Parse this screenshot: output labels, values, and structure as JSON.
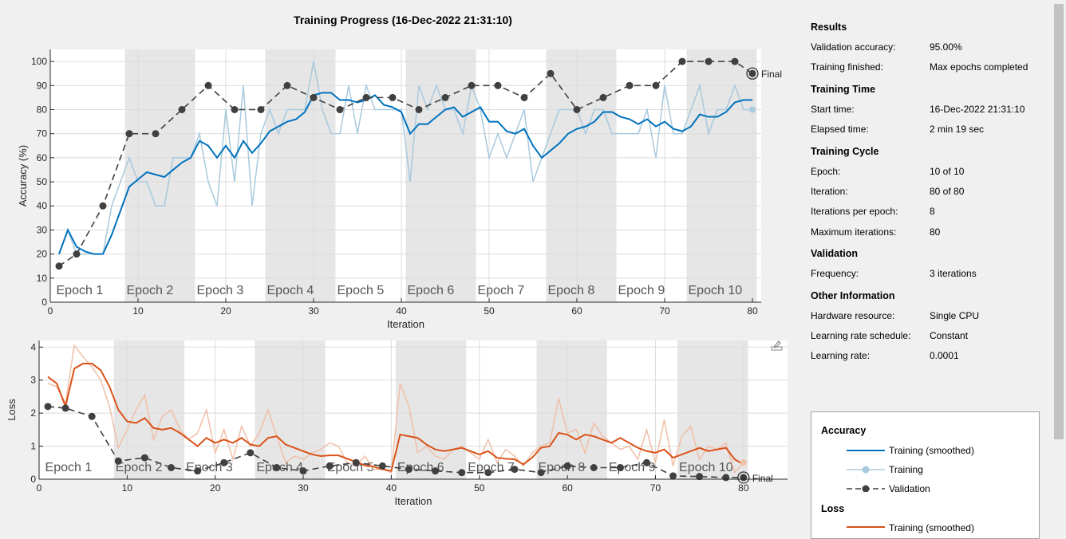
{
  "title": "Training Progress (16-Dec-2022 21:31:10)",
  "results": {
    "heading": "Results",
    "rows": [
      {
        "label": "Validation accuracy:",
        "value": "95.00%"
      },
      {
        "label": "Training finished:",
        "value": "Max epochs completed"
      }
    ]
  },
  "training_time": {
    "heading": "Training Time",
    "rows": [
      {
        "label": "Start time:",
        "value": "16-Dec-2022 21:31:10"
      },
      {
        "label": "Elapsed time:",
        "value": "2 min 19 sec"
      }
    ]
  },
  "training_cycle": {
    "heading": "Training Cycle",
    "rows": [
      {
        "label": "Epoch:",
        "value": "10 of 10"
      },
      {
        "label": "Iteration:",
        "value": "80 of 80"
      },
      {
        "label": "Iterations per epoch:",
        "value": "8"
      },
      {
        "label": "Maximum iterations:",
        "value": "80"
      }
    ]
  },
  "validation": {
    "heading": "Validation",
    "rows": [
      {
        "label": "Frequency:",
        "value": "3 iterations"
      }
    ]
  },
  "other": {
    "heading": "Other Information",
    "rows": [
      {
        "label": "Hardware resource:",
        "value": "Single CPU"
      },
      {
        "label": "Learning rate schedule:",
        "value": "Constant"
      },
      {
        "label": "Learning rate:",
        "value": "0.0001"
      }
    ]
  },
  "legend": {
    "accuracy_heading": "Accuracy",
    "acc_smoothed": "Training (smoothed)",
    "acc_training": "Training",
    "acc_validation": "Validation",
    "loss_heading": "Loss",
    "loss_smoothed": "Training (smoothed)"
  },
  "colors": {
    "acc_smoothed": "#0072bd",
    "acc_raw": "#a8c9de",
    "loss_smoothed": "#d95319",
    "loss_raw": "#efbfa8",
    "validation": "#404040",
    "epoch_band": "#e6e6e6"
  },
  "icons": {
    "export": "export-icon"
  },
  "chart_data": [
    {
      "type": "line",
      "name": "accuracy",
      "xlabel": "Iteration",
      "ylabel": "Accuracy (%)",
      "xlim": [
        0,
        81
      ],
      "ylim": [
        0,
        105
      ],
      "xticks": [
        0,
        10,
        20,
        30,
        40,
        50,
        60,
        70,
        80
      ],
      "yticks": [
        0,
        10,
        20,
        30,
        40,
        50,
        60,
        70,
        80,
        90,
        100
      ],
      "grid": true,
      "epochs": [
        "Epoch 1",
        "Epoch 2",
        "Epoch 3",
        "Epoch 4",
        "Epoch 5",
        "Epoch 6",
        "Epoch 7",
        "Epoch 8",
        "Epoch 9",
        "Epoch 10"
      ],
      "iters_per_epoch": 8,
      "final_label": "Final",
      "training": [
        20,
        30,
        20,
        20,
        20,
        20,
        40,
        50,
        60,
        50,
        50,
        40,
        40,
        60,
        60,
        60,
        70,
        50,
        40,
        80,
        50,
        90,
        40,
        70,
        80,
        70,
        80,
        80,
        80,
        100,
        80,
        70,
        70,
        90,
        70,
        90,
        80,
        80,
        80,
        80,
        50,
        90,
        80,
        90,
        80,
        80,
        70,
        90,
        80,
        60,
        70,
        60,
        70,
        80,
        50,
        60,
        70,
        80,
        80,
        80,
        70,
        80,
        80,
        70,
        70,
        70,
        70,
        80,
        60,
        90,
        70,
        70,
        80,
        90,
        70,
        80,
        80,
        90,
        80,
        80
      ],
      "training_smoothed": [
        20,
        30,
        23,
        21,
        20,
        20,
        28,
        38,
        48,
        51,
        54,
        53,
        52,
        55,
        58,
        60,
        67,
        65,
        60,
        65,
        60,
        67,
        62,
        66,
        71,
        73,
        75,
        76,
        79,
        86,
        87,
        87,
        84,
        84,
        83,
        84,
        86,
        82,
        81,
        79,
        70,
        74,
        74,
        77,
        80,
        81,
        77,
        79,
        81,
        75,
        75,
        71,
        70,
        72,
        65,
        60,
        63,
        66,
        70,
        72,
        73,
        75,
        79,
        79,
        77,
        76,
        74,
        76,
        73,
        75,
        72,
        71,
        73,
        78,
        77,
        77,
        79,
        83,
        84,
        84
      ],
      "validation_x": [
        1,
        3,
        6,
        9,
        12,
        15,
        18,
        21,
        24,
        27,
        30,
        33,
        36,
        39,
        42,
        45,
        48,
        51,
        54,
        57,
        60,
        63,
        66,
        69,
        72,
        75,
        78,
        80
      ],
      "validation": [
        15,
        20,
        40,
        70,
        70,
        80,
        90,
        80,
        80,
        90,
        85,
        80,
        85,
        85,
        80,
        85,
        90,
        90,
        85,
        95,
        80,
        85,
        90,
        90,
        100,
        100,
        100,
        95
      ]
    },
    {
      "type": "line",
      "name": "loss",
      "xlabel": "Iteration",
      "ylabel": "Loss",
      "xlim": [
        0,
        85
      ],
      "ylim": [
        0,
        4.2
      ],
      "xticks": [
        0,
        10,
        20,
        30,
        40,
        50,
        60,
        70,
        80
      ],
      "yticks": [
        0,
        1,
        2,
        3,
        4
      ],
      "grid": true,
      "epochs": [
        "Epoch 1",
        "Epoch 2",
        "Epoch 3",
        "Epoch 4",
        "Epoch 5",
        "Epoch 6",
        "Epoch 7",
        "Epoch 8",
        "Epoch 9",
        "Epoch 10"
      ],
      "iters_per_epoch": 8,
      "final_label": "Final",
      "training": [
        2.9,
        2.8,
        2.3,
        4.05,
        3.7,
        3.4,
        3.0,
        2.2,
        0.95,
        1.5,
        2.1,
        2.55,
        1.2,
        1.9,
        2.1,
        1.5,
        1.2,
        1.4,
        2.1,
        0.8,
        1.5,
        0.6,
        1.6,
        1.0,
        1.4,
        2.1,
        1.3,
        0.5,
        0.7,
        0.6,
        0.8,
        0.9,
        1.1,
        1.0,
        0.5,
        0.4,
        0.7,
        0.3,
        0.3,
        0.2,
        2.9,
        2.2,
        0.8,
        1.0,
        0.7,
        0.6,
        0.9,
        1.0,
        0.8,
        0.6,
        1.2,
        0.5,
        0.9,
        0.7,
        0.4,
        0.8,
        1.0,
        1.1,
        2.45,
        1.4,
        1.5,
        0.8,
        1.7,
        1.3,
        1.1,
        0.9,
        1.0,
        0.6,
        1.5,
        0.5,
        1.8,
        0.4,
        1.3,
        1.6,
        0.6,
        1.0,
        0.9,
        1.1,
        0.2,
        0.5
      ],
      "training_smoothed": [
        3.1,
        2.9,
        2.2,
        3.35,
        3.5,
        3.5,
        3.3,
        2.8,
        2.1,
        1.75,
        1.7,
        1.85,
        1.55,
        1.5,
        1.55,
        1.4,
        1.2,
        1.0,
        1.25,
        1.1,
        1.2,
        1.1,
        1.25,
        1.05,
        1.0,
        1.25,
        1.3,
        1.05,
        0.95,
        0.85,
        0.75,
        0.7,
        0.72,
        0.72,
        0.62,
        0.52,
        0.42,
        0.38,
        0.3,
        0.25,
        1.35,
        1.3,
        1.25,
        1.05,
        0.9,
        0.85,
        0.9,
        0.95,
        0.85,
        0.75,
        0.85,
        0.65,
        0.62,
        0.6,
        0.45,
        0.65,
        0.95,
        1.0,
        1.4,
        1.35,
        1.2,
        1.35,
        1.3,
        1.2,
        1.1,
        1.25,
        1.1,
        0.95,
        0.85,
        0.8,
        0.9,
        0.65,
        0.75,
        0.85,
        0.95,
        0.85,
        0.9,
        0.95,
        0.6,
        0.45
      ],
      "validation_x": [
        1,
        3,
        6,
        9,
        12,
        15,
        18,
        21,
        24,
        27,
        30,
        33,
        36,
        39,
        42,
        45,
        48,
        51,
        54,
        57,
        60,
        63,
        66,
        69,
        72,
        75,
        78,
        80
      ],
      "validation": [
        2.2,
        2.15,
        1.9,
        0.55,
        0.65,
        0.35,
        0.25,
        0.5,
        0.8,
        0.35,
        0.25,
        0.4,
        0.5,
        0.4,
        0.3,
        0.25,
        0.2,
        0.2,
        0.3,
        0.2,
        0.4,
        0.35,
        0.35,
        0.5,
        0.1,
        0.08,
        0.05,
        0.05
      ]
    }
  ]
}
